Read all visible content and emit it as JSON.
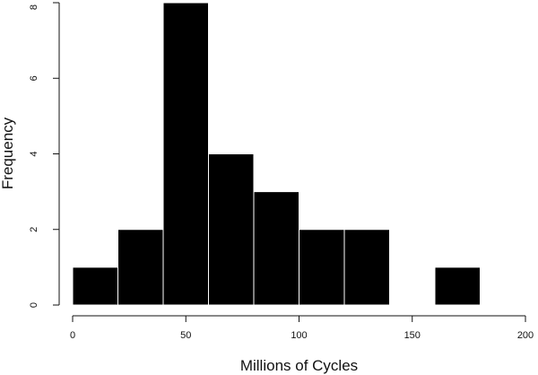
{
  "chart_data": {
    "type": "bar",
    "title": "",
    "xlabel": "Millions of Cycles",
    "ylabel": "Frequency",
    "bins": [
      {
        "start": 0,
        "end": 20,
        "count": 1
      },
      {
        "start": 20,
        "end": 40,
        "count": 2
      },
      {
        "start": 40,
        "end": 60,
        "count": 8
      },
      {
        "start": 60,
        "end": 80,
        "count": 4
      },
      {
        "start": 80,
        "end": 100,
        "count": 3
      },
      {
        "start": 100,
        "end": 120,
        "count": 2
      },
      {
        "start": 120,
        "end": 140,
        "count": 2
      },
      {
        "start": 140,
        "end": 160,
        "count": 0
      },
      {
        "start": 160,
        "end": 180,
        "count": 1
      }
    ],
    "xlim": [
      0,
      200
    ],
    "ylim": [
      0,
      8
    ],
    "xticks": [
      0,
      50,
      100,
      150,
      200
    ],
    "yticks": [
      0,
      2,
      4,
      6,
      8
    ],
    "grid": false,
    "bar_color": "#000000",
    "bar_edge_color": "#ffffff"
  }
}
